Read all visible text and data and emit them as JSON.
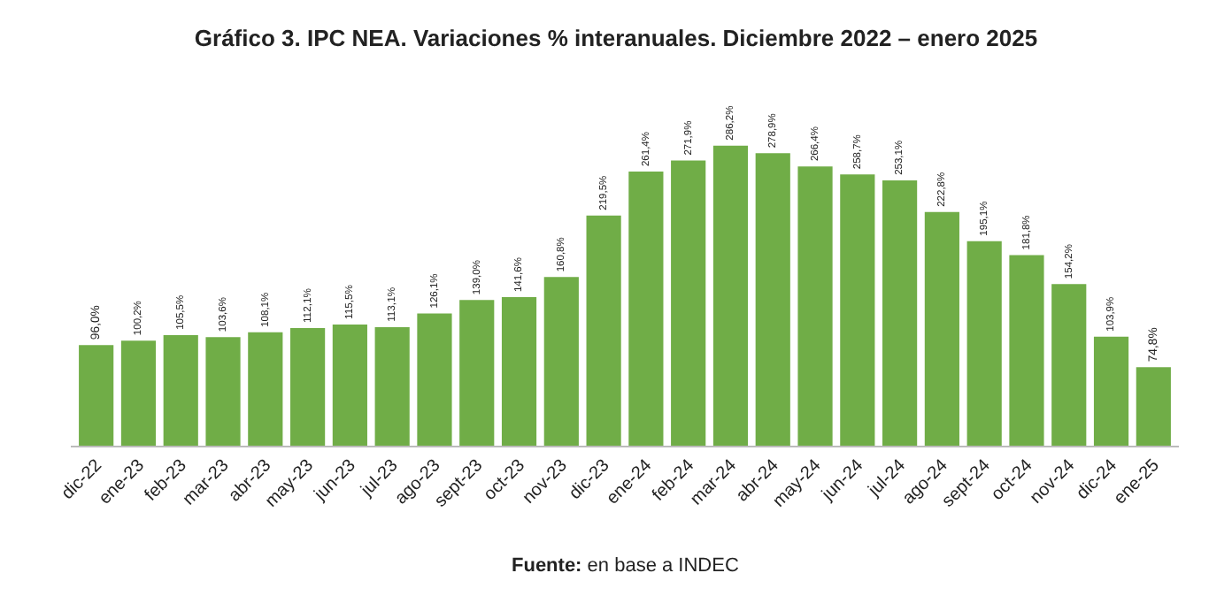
{
  "chart_data": {
    "type": "bar",
    "title": "Gráfico 3. IPC NEA. Variaciones % interanuales. Diciembre 2022 – enero 2025",
    "categories": [
      "dic-22",
      "ene-23",
      "feb-23",
      "mar-23",
      "abr-23",
      "may-23",
      "jun-23",
      "jul-23",
      "ago-23",
      "sept-23",
      "oct-23",
      "nov-23",
      "dic-23",
      "ene-24",
      "feb-24",
      "mar-24",
      "abr-24",
      "may-24",
      "jun-24",
      "jul-24",
      "ago-24",
      "sept-24",
      "oct-24",
      "nov-24",
      "dic-24",
      "ene-25"
    ],
    "values": [
      96.0,
      100.2,
      105.5,
      103.6,
      108.1,
      112.1,
      115.5,
      113.1,
      126.1,
      139.0,
      141.6,
      160.8,
      219.5,
      261.4,
      271.9,
      286.2,
      278.9,
      266.4,
      258.7,
      253.1,
      222.8,
      195.1,
      181.8,
      154.2,
      103.9,
      74.8
    ],
    "value_labels": [
      "96,0%",
      "100,2%",
      "105,5%",
      "103,6%",
      "108,1%",
      "112,1%",
      "115,5%",
      "113,1%",
      "126,1%",
      "139,0%",
      "141,6%",
      "160,8%",
      "219,5%",
      "261,4%",
      "271,9%",
      "286,2%",
      "278,9%",
      "266,4%",
      "258,7%",
      "253,1%",
      "222,8%",
      "195,1%",
      "181,8%",
      "154,2%",
      "103,9%",
      "74,8%"
    ],
    "color": "#70ad47",
    "tick_labels": "x",
    "annotations": [
      "Fuente: en base a INDEC"
    ]
  }
}
